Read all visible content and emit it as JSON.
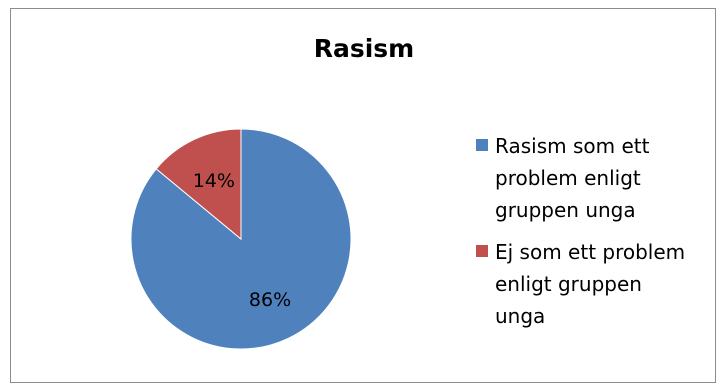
{
  "chart_data": {
    "type": "pie",
    "title": "Rasism",
    "slices": [
      {
        "label": "Rasism som ett problem enligt gruppen unga",
        "value": 86,
        "value_label": "86%",
        "color": "#4f81bd"
      },
      {
        "label": "Ej som ett problem enligt gruppen unga",
        "value": 14,
        "value_label": "14%",
        "color": "#c0504d"
      }
    ],
    "legend_position": "right"
  }
}
